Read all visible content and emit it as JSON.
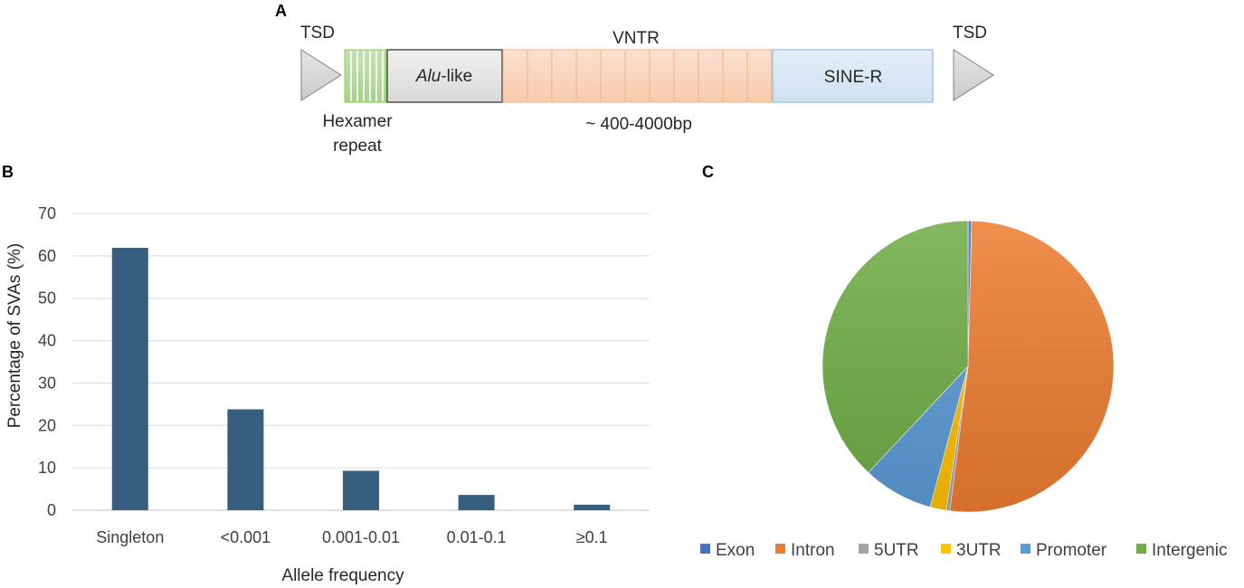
{
  "panels": {
    "a": "A",
    "b": "B",
    "c": "C"
  },
  "panel_a": {
    "tsd_left": "TSD",
    "tsd_right": "TSD",
    "alu_italic": "Alu",
    "alu_suffix": "-like",
    "vntr": "VNTR",
    "sine_r": "SINE-R",
    "hexamer_line1": "Hexamer",
    "hexamer_line2": "repeat",
    "size_range": "~ 400-4000bp",
    "colors": {
      "hexamer": "#a9d18e",
      "alu": "#e6e6e6",
      "vntr": "#f8cbad",
      "sine": "#dae8f5",
      "tsd": "#d9d9d9"
    }
  },
  "chart_data": [
    {
      "type": "bar",
      "title": "",
      "xlabel": "Allele frequency",
      "ylabel": "Percentage of SVAs (%)",
      "categories": [
        "Singleton",
        "<0.001",
        "0.001-0.01",
        "0.01-0.1",
        "≥0.1"
      ],
      "values": [
        61.9,
        23.8,
        9.3,
        3.6,
        1.3
      ],
      "ylim": [
        0,
        70
      ],
      "yticks": [
        0,
        10,
        20,
        30,
        40,
        50,
        60,
        70
      ],
      "grid": true,
      "color": "#375e7f"
    },
    {
      "type": "pie",
      "title": "",
      "labels": [
        "Exon",
        "Intron",
        "5UTR",
        "3UTR",
        "Promoter",
        "Intergenic"
      ],
      "values": [
        0.4,
        51.6,
        0.4,
        1.8,
        7.8,
        38.0
      ],
      "colors": [
        "#4472c4",
        "#ed7d31",
        "#a5a5a5",
        "#ffc000",
        "#5b9bd5",
        "#70ad47"
      ],
      "legend": "bottom"
    }
  ]
}
